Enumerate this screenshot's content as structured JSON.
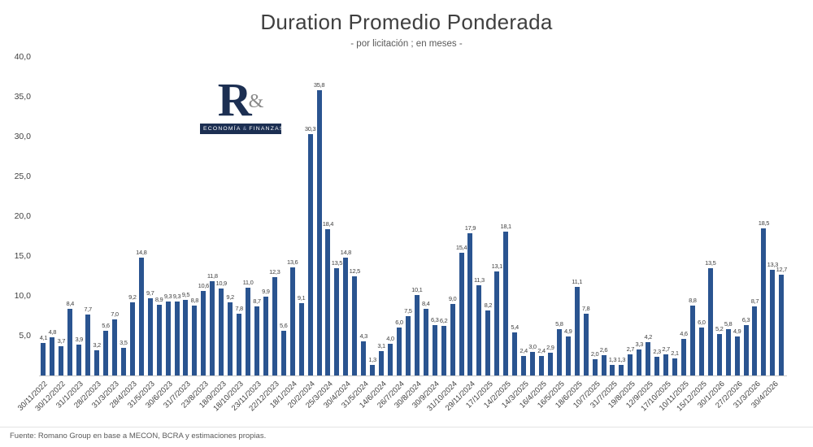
{
  "title": "Duration Promedio Ponderada",
  "subtitle": "- por licitación ; en meses -",
  "logo": {
    "letter": "R",
    "amp": "&",
    "tagline": "ECONOMÍA",
    "tagline_amp": "&",
    "tagline2": "FINANZAS"
  },
  "footer": {
    "source_label": "Fuente:",
    "source_text": "Romano Group en base a MECON, BCRA y estimaciones propias."
  },
  "chart_data": {
    "type": "bar",
    "title": "Duration Promedio Ponderada",
    "subtitle": "- por licitación ; en meses -",
    "xlabel": "",
    "ylabel": "",
    "ylim": [
      0,
      40
    ],
    "y_tick_labels": [
      "40,0",
      "35,0",
      "30,0",
      "25,0",
      "20,0",
      "15,0",
      "10,0",
      "5,0"
    ],
    "grid": false,
    "legend": false,
    "bar_color": "#2A5490",
    "value_label_decimal": "comma",
    "x_tick_every": 2,
    "x_tick_labels": [
      "30/11/2022",
      "30/12/2022",
      "31/1/2023",
      "28/2/2023",
      "31/3/2023",
      "28/4/2023",
      "31/5/2023",
      "30/6/2023",
      "31/7/2023",
      "23/8/2023",
      "18/9/2023",
      "18/10/2023",
      "23/11/2023",
      "22/12/2023",
      "18/1/2024",
      "20/2/2024",
      "25/3/2024",
      "30/4/2024",
      "31/5/2024",
      "14/6/2024",
      "26/7/2024",
      "30/8/2024",
      "30/9/2024",
      "31/10/2024",
      "29/11/2024",
      "17/1/2025",
      "14/2/2025",
      "14/3/2025",
      "16/4/2025",
      "16/5/2025",
      "18/6/2025",
      "10/7/2025",
      "31/7/2025",
      "19/8/2025",
      "12/9/2025",
      "17/10/2025",
      "10/11/2025",
      "15/12/2025",
      "30/1/2026",
      "27/2/2026",
      "31/3/2026",
      "30/4/2026"
    ],
    "values": [
      4.1,
      4.8,
      3.7,
      8.4,
      3.9,
      7.7,
      3.2,
      5.6,
      7.0,
      3.5,
      9.2,
      14.8,
      9.7,
      8.9,
      9.3,
      9.3,
      9.5,
      8.8,
      10.6,
      11.8,
      10.9,
      9.2,
      7.8,
      11.0,
      8.7,
      9.9,
      12.3,
      5.6,
      13.6,
      9.1,
      30.3,
      35.8,
      18.4,
      13.5,
      14.8,
      12.5,
      4.3,
      1.3,
      3.1,
      4.0,
      6.0,
      7.5,
      10.1,
      8.4,
      6.3,
      6.2,
      9.0,
      15.4,
      17.9,
      11.3,
      8.2,
      13.1,
      18.1,
      5.4,
      2.4,
      3.0,
      2.4,
      2.9,
      5.8,
      4.9,
      11.1,
      7.8,
      2.0,
      2.6,
      1.3,
      1.3,
      2.7,
      3.3,
      4.2,
      2.3,
      2.7,
      2.1,
      4.6,
      8.8,
      6.0,
      13.5,
      5.2,
      5.8,
      4.9,
      6.3,
      8.7,
      18.5,
      13.3,
      12.7
    ]
  }
}
